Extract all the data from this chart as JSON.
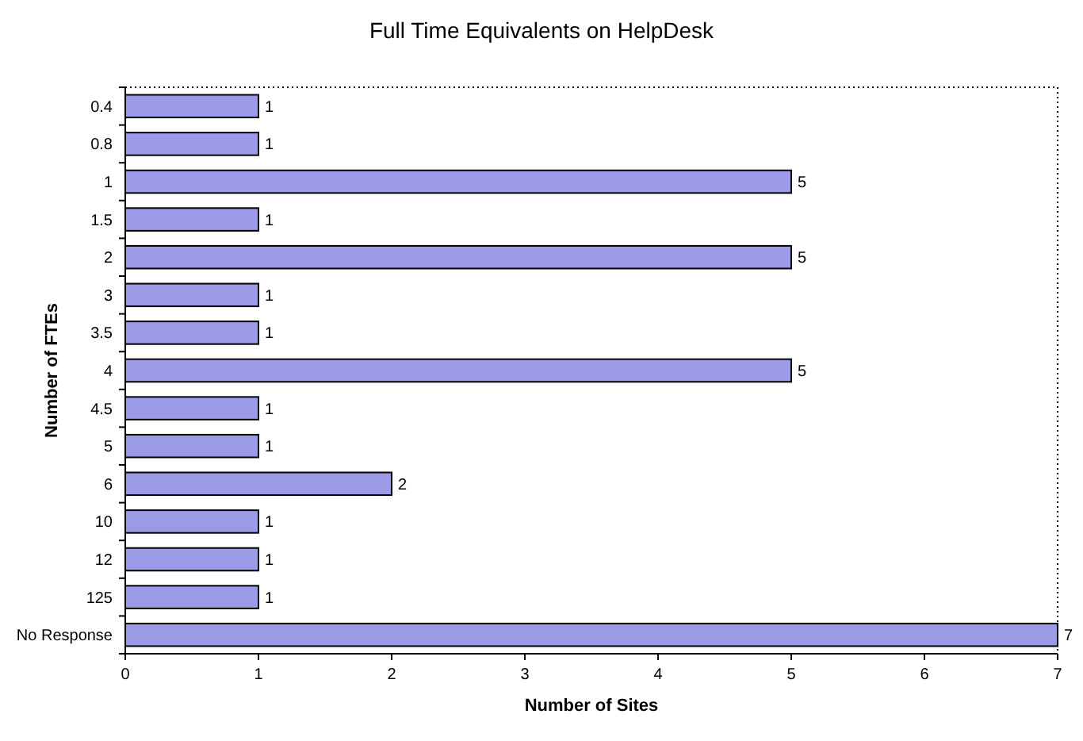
{
  "chart_data": {
    "type": "bar",
    "orientation": "horizontal",
    "title": "Full Time Equivalents on HelpDesk",
    "xlabel": "Number of Sites",
    "ylabel": "Number of FTEs",
    "categories": [
      "0.4",
      "0.8",
      "1",
      "1.5",
      "2",
      "3",
      "3.5",
      "4",
      "4.5",
      "5",
      "6",
      "10",
      "12",
      "125",
      "No Response"
    ],
    "values": [
      1,
      1,
      5,
      1,
      5,
      1,
      1,
      5,
      1,
      1,
      2,
      1,
      1,
      1,
      7
    ],
    "color": "#9a9ae6",
    "xlim": [
      0,
      7
    ],
    "xticks": [
      0,
      1,
      2,
      3,
      4,
      5,
      6,
      7
    ],
    "data_labels": true
  }
}
